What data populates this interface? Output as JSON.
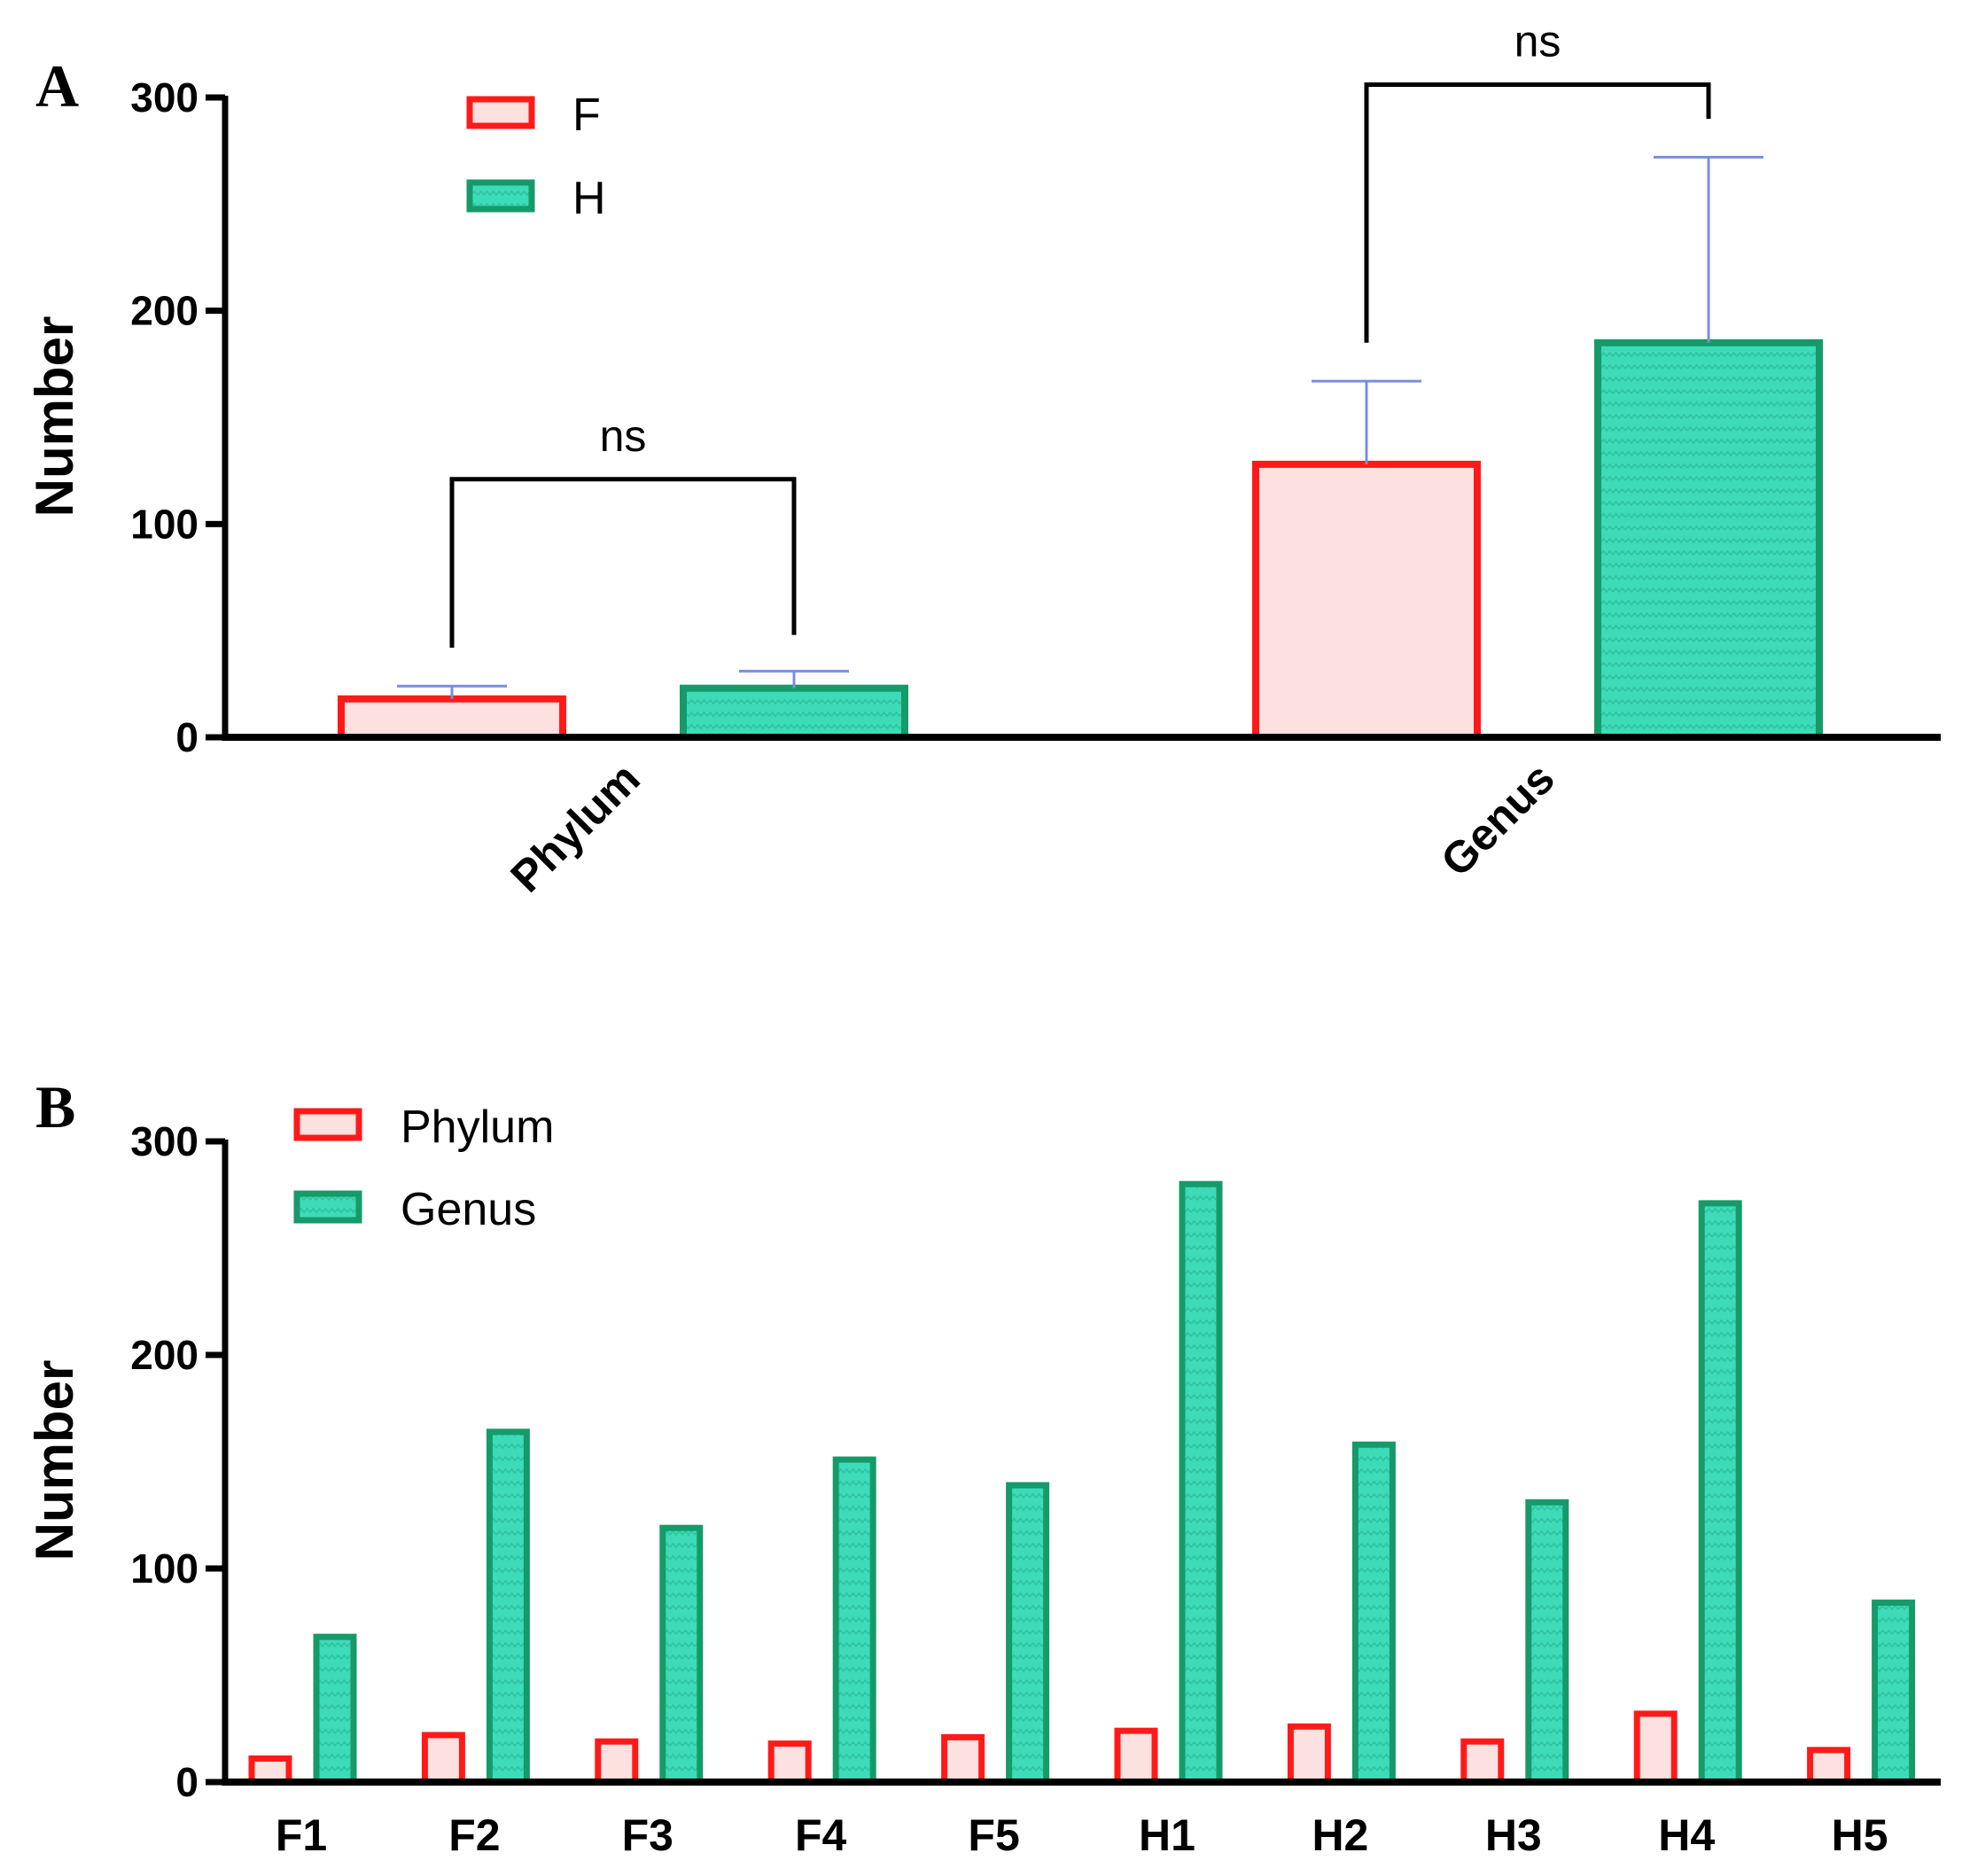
{
  "colors": {
    "F": {
      "fill": "#fde1e1",
      "stroke": "#ff1a1a"
    },
    "H": {
      "fill": "#3ddbb7",
      "stroke": "#169a6a"
    },
    "error_bar": "#7a8fd8",
    "axis": "#000000"
  },
  "chart_data": [
    {
      "panel": "A",
      "type": "bar",
      "title": "",
      "xlabel": "",
      "ylabel": "Number",
      "ylim": [
        0,
        300
      ],
      "yticks": [
        "0",
        "100",
        "200",
        "300"
      ],
      "categories": [
        "Phylum",
        "Genus"
      ],
      "series": [
        {
          "name": "F",
          "values": [
            18,
            128
          ],
          "errors": [
            6,
            39
          ]
        },
        {
          "name": "H",
          "values": [
            23,
            185
          ],
          "errors": [
            8,
            87
          ]
        }
      ],
      "significance": [
        {
          "category": "Phylum",
          "label": "ns"
        },
        {
          "category": "Genus",
          "label": "ns"
        }
      ],
      "legend": [
        "F",
        "H"
      ]
    },
    {
      "panel": "B",
      "type": "bar",
      "title": "",
      "xlabel": "",
      "ylabel": "Number",
      "ylim": [
        0,
        300
      ],
      "yticks": [
        "0",
        "100",
        "200",
        "300"
      ],
      "categories": [
        "F1",
        "F2",
        "F3",
        "F4",
        "F5",
        "H1",
        "H2",
        "H3",
        "H4",
        "H5"
      ],
      "series": [
        {
          "name": "Phylum",
          "values": [
            11,
            22,
            19,
            18,
            21,
            24,
            26,
            19,
            32,
            15
          ]
        },
        {
          "name": "Genus",
          "values": [
            68,
            164,
            119,
            151,
            139,
            280,
            158,
            131,
            271,
            84
          ]
        }
      ],
      "legend": [
        "Phylum",
        "Genus"
      ]
    }
  ]
}
